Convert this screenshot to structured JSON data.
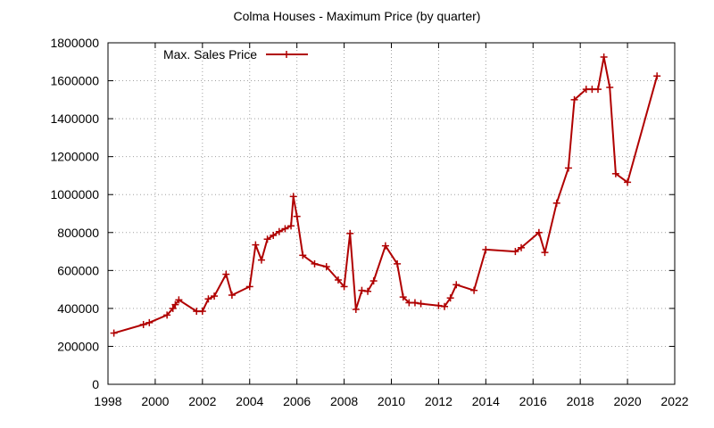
{
  "colors": {
    "series": "#b00000",
    "axis": "#000000",
    "grid": "#a0a0a0"
  },
  "chart_data": {
    "type": "line",
    "title": "Colma Houses - Maximum Price (by quarter)",
    "xlabel": "",
    "ylabel": "",
    "xlim": [
      1998,
      2022
    ],
    "ylim": [
      0,
      1800000
    ],
    "xticks": [
      1998,
      2000,
      2002,
      2004,
      2006,
      2008,
      2010,
      2012,
      2014,
      2016,
      2018,
      2020,
      2022
    ],
    "yticks": [
      0,
      200000,
      400000,
      600000,
      800000,
      1000000,
      1200000,
      1400000,
      1600000,
      1800000
    ],
    "grid": true,
    "legend_position": "top-left",
    "series": [
      {
        "name": "Max. Sales Price",
        "marker": "plus",
        "x": [
          1998.25,
          1999.5,
          1999.75,
          2000.5,
          2000.75,
          2000.85,
          2001.0,
          2001.75,
          2002.0,
          2002.25,
          2002.5,
          2003.0,
          2003.25,
          2004.0,
          2004.25,
          2004.5,
          2004.75,
          2005.0,
          2005.25,
          2005.5,
          2005.75,
          2005.85,
          2006.0,
          2006.25,
          2006.75,
          2007.25,
          2007.75,
          2008.0,
          2008.25,
          2008.5,
          2008.75,
          2009.0,
          2009.25,
          2009.75,
          2010.25,
          2010.5,
          2010.75,
          2011.0,
          2011.25,
          2012.0,
          2012.25,
          2012.5,
          2012.75,
          2013.5,
          2014.0,
          2015.25,
          2015.5,
          2016.25,
          2016.5,
          2017.0,
          2017.5,
          2017.75,
          2018.25,
          2018.5,
          2018.75,
          2019.0,
          2019.25,
          2019.5,
          2020.0,
          2021.25
        ],
        "values": [
          270000,
          315000,
          325000,
          365000,
          400000,
          420000,
          445000,
          385000,
          385000,
          450000,
          465000,
          580000,
          470000,
          515000,
          735000,
          655000,
          765000,
          785000,
          805000,
          820000,
          835000,
          990000,
          885000,
          680000,
          635000,
          620000,
          550000,
          515000,
          795000,
          395000,
          495000,
          490000,
          545000,
          730000,
          635000,
          460000,
          430000,
          430000,
          425000,
          415000,
          410000,
          455000,
          525000,
          495000,
          710000,
          700000,
          720000,
          800000,
          695000,
          955000,
          1140000,
          1500000,
          1555000,
          1555000,
          1555000,
          1725000,
          1565000,
          1110000,
          1065000,
          1625000
        ]
      }
    ]
  }
}
